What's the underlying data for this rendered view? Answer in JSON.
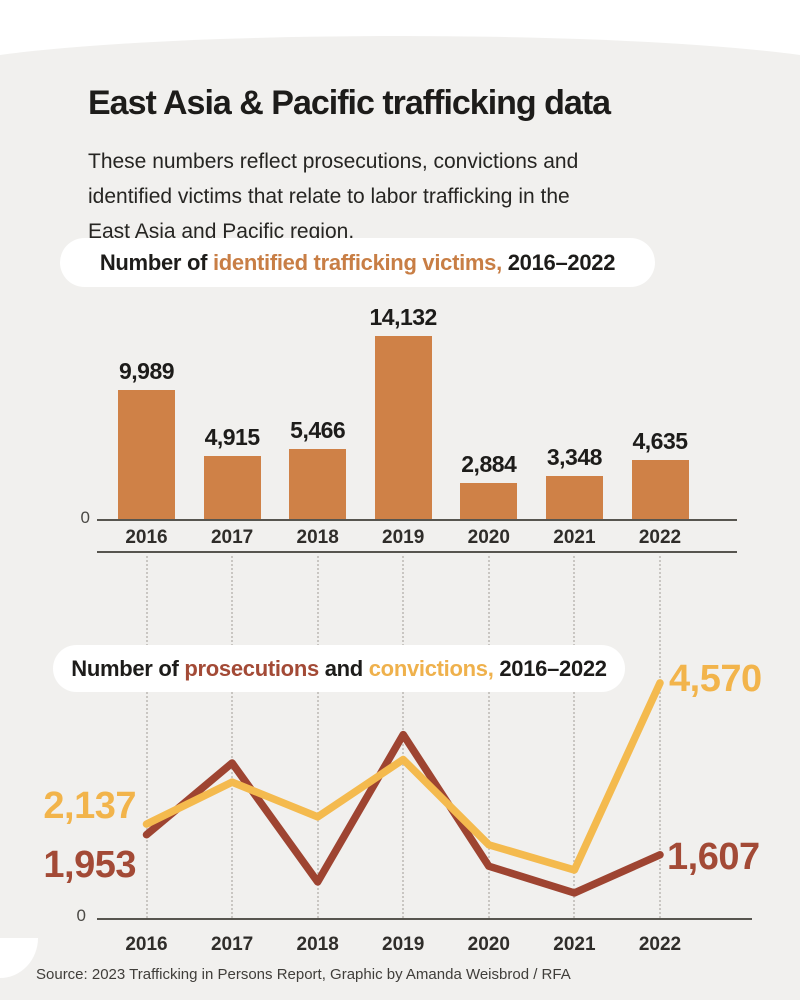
{
  "header": {
    "title": "East Asia & Pacific trafficking data",
    "subtitle": "These numbers reflect prosecutions, convictions and\nidentified victims that relate to labor trafficking in the\nEast Asia and Pacific region."
  },
  "colors": {
    "card_background": "#f1f0ee",
    "bar_orange": "#cf8147",
    "prosecutions_red": "#9e4431",
    "convictions_yellow": "#f4ba4e"
  },
  "bar_section": {
    "pill": {
      "prefix": "Number of ",
      "highlight": "identified trafficking victims,",
      "suffix": " 2016–2022"
    },
    "zero_label": "0"
  },
  "line_section": {
    "pill": {
      "prefix": "Number of ",
      "series1": "prosecutions",
      "mid": " and ",
      "series2": "convictions,",
      "suffix": " 2016–2022"
    },
    "zero_label": "0",
    "labels": {
      "convictions_first": "2,137",
      "prosecutions_first": "1,953",
      "convictions_last": "4,570",
      "prosecutions_last": "1,607"
    }
  },
  "footer": {
    "source": "Source: 2023 Trafficking in Persons Report, Graphic by Amanda Weisbrod / RFA"
  },
  "chart_data": [
    {
      "type": "bar",
      "title": "Number of identified trafficking victims, 2016–2022",
      "categories": [
        "2016",
        "2017",
        "2018",
        "2019",
        "2020",
        "2021",
        "2022"
      ],
      "values": [
        9989,
        4915,
        5466,
        14132,
        2884,
        3348,
        4635
      ],
      "value_labels": [
        "9,989",
        "4,915",
        "5,466",
        "14,132",
        "2,884",
        "3,348",
        "4,635"
      ],
      "bar_color": "#cf8147",
      "ylim": [
        0,
        14500
      ],
      "grid": false
    },
    {
      "type": "line",
      "title": "Number of prosecutions and convictions, 2016–2022",
      "categories": [
        "2016",
        "2017",
        "2018",
        "2019",
        "2020",
        "2021",
        "2022"
      ],
      "series": [
        {
          "name": "prosecutions",
          "color": "#9e4431",
          "values": [
            1953,
            3190,
            1140,
            3680,
            1410,
            950,
            1607
          ]
        },
        {
          "name": "convictions",
          "color": "#f4ba4e",
          "values": [
            2137,
            2860,
            2260,
            3250,
            1780,
            1345,
            4570
          ]
        }
      ],
      "ylim": [
        0,
        4700
      ],
      "grid": false
    }
  ]
}
